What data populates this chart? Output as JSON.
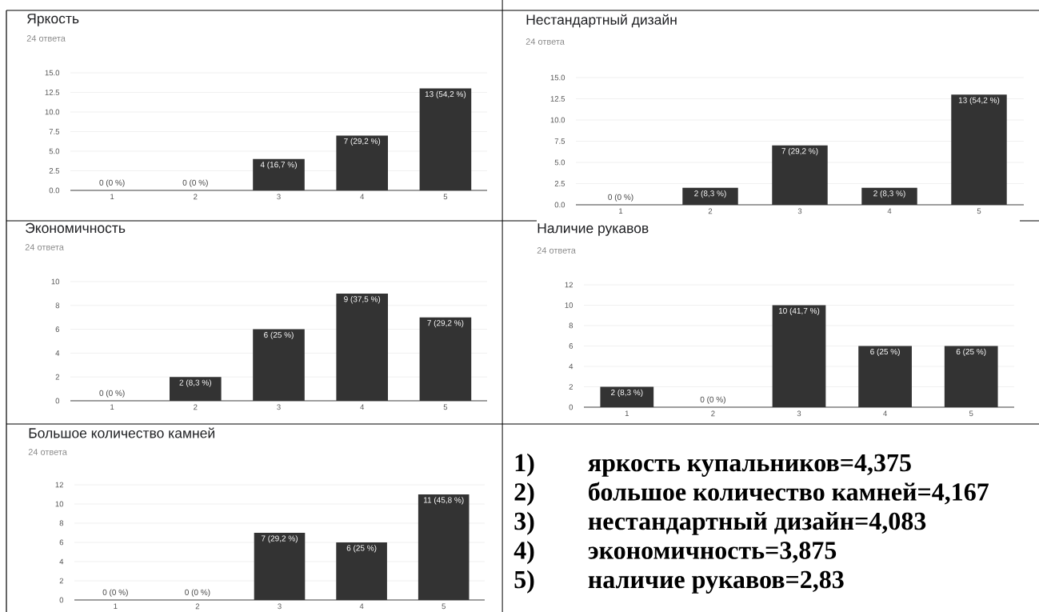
{
  "chart_data": [
    {
      "type": "bar",
      "title": "Яркость",
      "subtitle": "24 ответа",
      "categories": [
        "1",
        "2",
        "3",
        "4",
        "5"
      ],
      "values": [
        0,
        0,
        4,
        7,
        13
      ],
      "value_labels": [
        "0 (0 %)",
        "0 (0 %)",
        "4 (16,7 %)",
        "7 (29,2 %)",
        "13 (54,2 %)"
      ],
      "color": "#333333",
      "ylim": [
        0,
        15
      ],
      "yticks": [
        {
          "value": 0,
          "label": "0.0"
        },
        2.5,
        {
          "value": 5,
          "label": "5.0"
        },
        7.5,
        {
          "value": 10,
          "label": "10.0"
        },
        12.5,
        {
          "value": 15,
          "label": "15.0"
        }
      ],
      "grid": "y"
    },
    {
      "type": "bar",
      "title": "Нестандартный дизайн",
      "subtitle": "24 ответа",
      "categories": [
        "1",
        "2",
        "3",
        "4",
        "5"
      ],
      "values": [
        0,
        2,
        7,
        2,
        13
      ],
      "value_labels": [
        "0 (0 %)",
        "2 (8,3 %)",
        "7 (29,2 %)",
        "2 (8,3 %)",
        "13 (54,2 %)"
      ],
      "color": "#333333",
      "ylim": [
        0,
        15
      ],
      "yticks": [
        {
          "value": 0,
          "label": "0.0"
        },
        2.5,
        {
          "value": 5,
          "label": "5.0"
        },
        7.5,
        {
          "value": 10,
          "label": "10.0"
        },
        12.5,
        {
          "value": 15,
          "label": "15.0"
        }
      ],
      "grid": "y"
    },
    {
      "type": "bar",
      "title": "Экономичность",
      "subtitle": "24 ответа",
      "categories": [
        "1",
        "2",
        "3",
        "4",
        "5"
      ],
      "values": [
        0,
        2,
        6,
        9,
        7
      ],
      "value_labels": [
        "0 (0 %)",
        "2 (8,3 %)",
        "6 (25 %)",
        "9 (37,5 %)",
        "7 (29,2 %)"
      ],
      "color": "#333333",
      "ylim": [
        0,
        10
      ],
      "yticks": [
        0,
        2,
        4,
        6,
        8,
        10
      ],
      "grid": "y"
    },
    {
      "type": "bar",
      "title": "Наличие рукавов",
      "subtitle": "24 ответа",
      "categories": [
        "1",
        "2",
        "3",
        "4",
        "5"
      ],
      "values": [
        2,
        0,
        10,
        6,
        6
      ],
      "value_labels": [
        "2 (8,3 %)",
        "0 (0 %)",
        "10 (41,7 %)",
        "6 (25 %)",
        "6 (25 %)"
      ],
      "color": "#333333",
      "ylim": [
        0,
        12
      ],
      "yticks": [
        0,
        2,
        4,
        6,
        8,
        10,
        12
      ],
      "grid": "y"
    },
    {
      "type": "bar",
      "title": "Большое количество камней",
      "subtitle": "24 ответа",
      "categories": [
        "1",
        "2",
        "3",
        "4",
        "5"
      ],
      "values": [
        0,
        0,
        7,
        6,
        11
      ],
      "value_labels": [
        "0 (0 %)",
        "0 (0 %)",
        "7 (29,2 %)",
        "6 (25 %)",
        "11 (45,8 %)"
      ],
      "color": "#333333",
      "ylim": [
        0,
        12
      ],
      "yticks": [
        0,
        2,
        4,
        6,
        8,
        10,
        12
      ],
      "grid": "y"
    },
    {
      "type": "other",
      "annotations": [
        "1) яркость купальников=4,375",
        "2) большое количество камней=4,167",
        "3) нестандартный дизайн=4,083",
        "4) экономичность=3,875",
        "5) наличие рукавов=2,83"
      ]
    }
  ]
}
